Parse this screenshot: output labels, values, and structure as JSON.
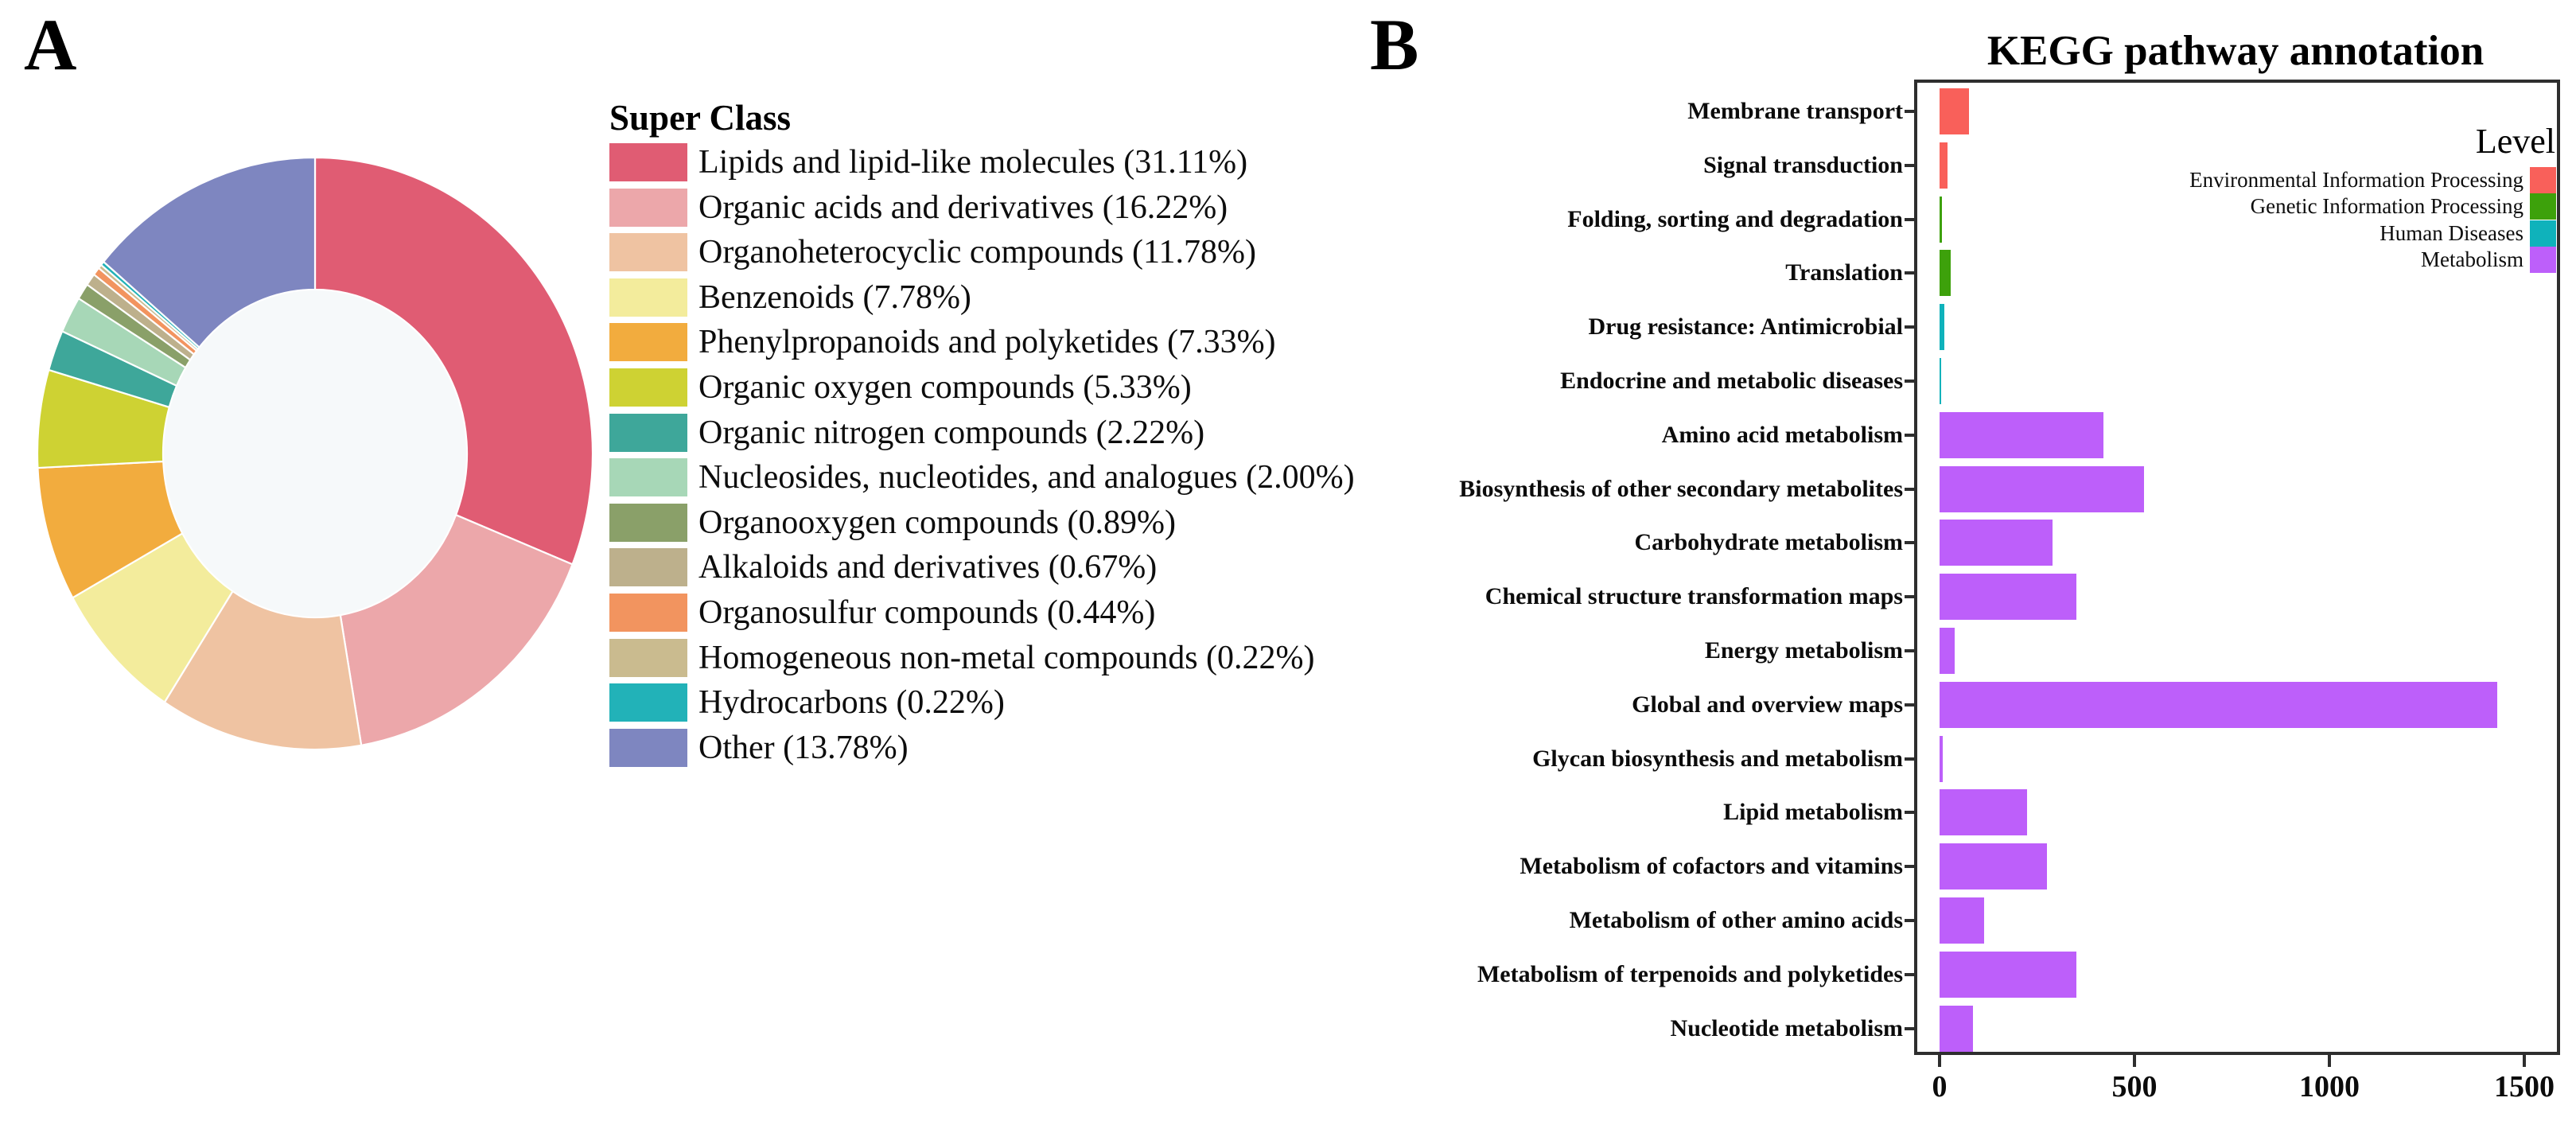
{
  "panel_labels": {
    "a": "A",
    "b": "B"
  },
  "chart_data": [
    {
      "type": "pie",
      "panel": "A",
      "subtype": "donut",
      "legend_title": "Super Class",
      "legend_position": "right",
      "hole_color": "#f6f9fa",
      "slices": [
        {
          "label": "Lipids and lipid-like molecules (31.11%)",
          "name": "Lipids and lipid-like molecules",
          "pct": 31.11,
          "color": "#e05c73"
        },
        {
          "label": "Organic acids and derivatives (16.22%)",
          "name": "Organic acids and derivatives",
          "pct": 16.22,
          "color": "#eca7aa"
        },
        {
          "label": "Organoheterocyclic compounds (11.78%)",
          "name": "Organoheterocyclic compounds",
          "pct": 11.78,
          "color": "#efc3a2"
        },
        {
          "label": "Benzenoids (7.78%)",
          "name": "Benzenoids",
          "pct": 7.78,
          "color": "#f3ec9c"
        },
        {
          "label": "Phenylpropanoids and polyketides (7.33%)",
          "name": "Phenylpropanoids and polyketides",
          "pct": 7.33,
          "color": "#f2ac3e"
        },
        {
          "label": "Organic oxygen compounds (5.33%)",
          "name": "Organic oxygen compounds",
          "pct": 5.33,
          "color": "#ced233"
        },
        {
          "label": "Organic nitrogen compounds (2.22%)",
          "name": "Organic nitrogen compounds",
          "pct": 2.22,
          "color": "#3ea79a"
        },
        {
          "label": "Nucleosides, nucleotides, and analogues (2.00%)",
          "name": "Nucleosides, nucleotides, and analogues",
          "pct": 2.0,
          "color": "#a7d7b7"
        },
        {
          "label": "Organooxygen compounds (0.89%)",
          "name": "Organooxygen compounds",
          "pct": 0.89,
          "color": "#8aa069"
        },
        {
          "label": "Alkaloids and derivatives (0.67%)",
          "name": "Alkaloids and derivatives",
          "pct": 0.67,
          "color": "#bdb08c"
        },
        {
          "label": "Organosulfur compounds (0.44%)",
          "name": "Organosulfur compounds",
          "pct": 0.44,
          "color": "#f2945f"
        },
        {
          "label": "Homogeneous non-metal compounds (0.22%)",
          "name": "Homogeneous non-metal compounds",
          "pct": 0.22,
          "color": "#cabb8f"
        },
        {
          "label": "Hydrocarbons (0.22%)",
          "name": "Hydrocarbons",
          "pct": 0.22,
          "color": "#22b2b8"
        },
        {
          "label": "Other (13.78%)",
          "name": "Other",
          "pct": 13.78,
          "color": "#7e86c0"
        }
      ]
    },
    {
      "type": "bar",
      "panel": "B",
      "title": "KEGG pathway annotation",
      "orientation": "horizontal",
      "xlim": [
        0,
        1580
      ],
      "x_ticks": [
        "0",
        "500",
        "1000",
        "1500"
      ],
      "grid": false,
      "legend_title": "Level",
      "legend_position": "inside-top-right",
      "levels": [
        {
          "label": "Environmental Information Processing",
          "color": "#f9605a"
        },
        {
          "label": "Genetic Information Processing",
          "color": "#3da10b"
        },
        {
          "label": "Human Diseases",
          "color": "#0fb2bb"
        },
        {
          "label": "Metabolism",
          "color": "#bd5ffa"
        }
      ],
      "bars": [
        {
          "category": "Membrane transport",
          "value": 75,
          "level": "Environmental Information Processing"
        },
        {
          "category": "Signal transduction",
          "value": 20,
          "level": "Environmental Information Processing"
        },
        {
          "category": "Folding, sorting and degradation",
          "value": 5,
          "level": "Genetic Information Processing"
        },
        {
          "category": "Translation",
          "value": 28,
          "level": "Genetic Information Processing"
        },
        {
          "category": "Drug resistance: Antimicrobial",
          "value": 12,
          "level": "Human Diseases"
        },
        {
          "category": "Endocrine and metabolic diseases",
          "value": 4,
          "level": "Human Diseases"
        },
        {
          "category": "Amino acid metabolism",
          "value": 420,
          "level": "Metabolism"
        },
        {
          "category": "Biosynthesis of other secondary metabolites",
          "value": 525,
          "level": "Metabolism"
        },
        {
          "category": "Carbohydrate metabolism",
          "value": 290,
          "level": "Metabolism"
        },
        {
          "category": "Chemical structure transformation maps",
          "value": 350,
          "level": "Metabolism"
        },
        {
          "category": "Energy metabolism",
          "value": 38,
          "level": "Metabolism"
        },
        {
          "category": "Global and overview maps",
          "value": 1430,
          "level": "Metabolism"
        },
        {
          "category": "Glycan biosynthesis and metabolism",
          "value": 8,
          "level": "Metabolism"
        },
        {
          "category": "Lipid metabolism",
          "value": 225,
          "level": "Metabolism"
        },
        {
          "category": "Metabolism of cofactors and vitamins",
          "value": 275,
          "level": "Metabolism"
        },
        {
          "category": "Metabolism of other amino acids",
          "value": 115,
          "level": "Metabolism"
        },
        {
          "category": "Metabolism of terpenoids and polyketides",
          "value": 350,
          "level": "Metabolism"
        },
        {
          "category": "Nucleotide metabolism",
          "value": 85,
          "level": "Metabolism"
        }
      ]
    }
  ]
}
